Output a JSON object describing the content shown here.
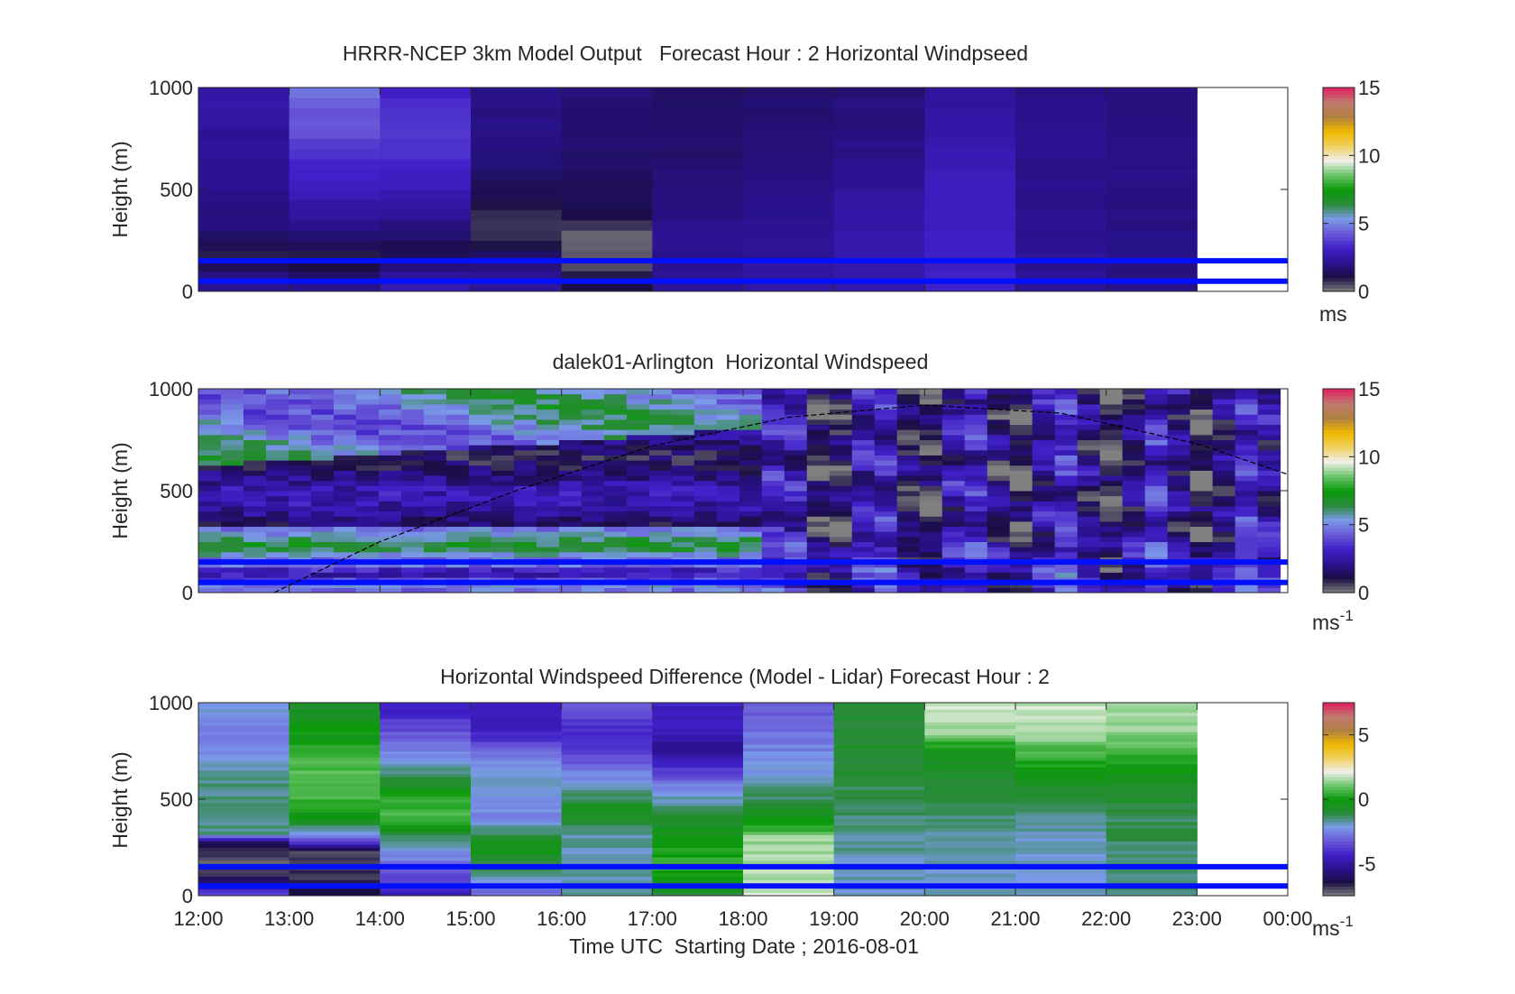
{
  "colors": {
    "speed_colormap": [
      "#808080",
      "#1a0e44",
      "#2a1290",
      "#4020c8",
      "#6a5ad8",
      "#7a9ae8",
      "#2a8a3a",
      "#0a9a0a",
      "#6ac46a",
      "#f0f0ea",
      "#f0d060",
      "#f0b800",
      "#b08040",
      "#c07a70",
      "#e02060"
    ],
    "diff_colormap": [
      "#808080",
      "#1a0e44",
      "#2a1290",
      "#4020c8",
      "#6a5ad8",
      "#7a9ae8",
      "#2a8a3a",
      "#0a9a0a",
      "#6ac46a",
      "#f0f0ea",
      "#f0d060",
      "#f0b800",
      "#b08040",
      "#c07a70",
      "#e02060"
    ],
    "reference_line": "#0010ff",
    "daylight_curve": "#000000"
  },
  "chart_data": [
    {
      "type": "heatmap",
      "title": "HRRR-NCEP 3km Model Output   Forecast Hour : 2 Horizontal Windpseed",
      "xlabel": "",
      "ylabel": "Height (m)",
      "ylim": [
        0,
        1000
      ],
      "yticks": [
        "0",
        "500",
        "1000"
      ],
      "xlim": [
        "12:00",
        "00:00"
      ],
      "colorbar": {
        "ticks": [
          "0",
          "5",
          "10",
          "15"
        ],
        "range": [
          0,
          15
        ],
        "unit": "ms"
      },
      "columns": [
        {
          "start": "12:00",
          "end": "13:00",
          "profile": [
            {
              "h": 0,
              "v": 2.3
            },
            {
              "h": 80,
              "v": 2.0
            },
            {
              "h": 150,
              "v": 0.8
            },
            {
              "h": 300,
              "v": 1.8
            },
            {
              "h": 600,
              "v": 2.2
            },
            {
              "h": 1000,
              "v": 2.6
            }
          ]
        },
        {
          "start": "13:00",
          "end": "14:00",
          "profile": [
            {
              "h": 0,
              "v": 2.5
            },
            {
              "h": 150,
              "v": 0.7
            },
            {
              "h": 300,
              "v": 2.0
            },
            {
              "h": 500,
              "v": 3.0
            },
            {
              "h": 650,
              "v": 3.4
            },
            {
              "h": 800,
              "v": 4.3
            },
            {
              "h": 900,
              "v": 4.2
            },
            {
              "h": 1000,
              "v": 5.0
            }
          ]
        },
        {
          "start": "14:00",
          "end": "15:00",
          "profile": [
            {
              "h": 0,
              "v": 2.8
            },
            {
              "h": 200,
              "v": 1.2
            },
            {
              "h": 400,
              "v": 2.4
            },
            {
              "h": 600,
              "v": 3.3
            },
            {
              "h": 800,
              "v": 3.6
            },
            {
              "h": 1000,
              "v": 3.2
            }
          ]
        },
        {
          "start": "15:00",
          "end": "16:00",
          "profile": [
            {
              "h": 0,
              "v": 2.6
            },
            {
              "h": 150,
              "v": 1.6
            },
            {
              "h": 300,
              "v": 0.6
            },
            {
              "h": 500,
              "v": 1.4
            },
            {
              "h": 700,
              "v": 1.9
            },
            {
              "h": 1000,
              "v": 2.0
            }
          ]
        },
        {
          "start": "16:00",
          "end": "17:00",
          "profile": [
            {
              "h": 0,
              "v": 1.2
            },
            {
              "h": 150,
              "v": 0.5
            },
            {
              "h": 280,
              "v": 0.2
            },
            {
              "h": 350,
              "v": 1.0
            },
            {
              "h": 600,
              "v": 1.6
            },
            {
              "h": 1000,
              "v": 1.8
            }
          ]
        },
        {
          "start": "17:00",
          "end": "18:00",
          "profile": [
            {
              "h": 0,
              "v": 2.2
            },
            {
              "h": 300,
              "v": 2.1
            },
            {
              "h": 600,
              "v": 1.7
            },
            {
              "h": 1000,
              "v": 1.5
            }
          ]
        },
        {
          "start": "18:00",
          "end": "19:00",
          "profile": [
            {
              "h": 0,
              "v": 2.4
            },
            {
              "h": 400,
              "v": 2.2
            },
            {
              "h": 800,
              "v": 1.8
            },
            {
              "h": 1000,
              "v": 1.7
            }
          ]
        },
        {
          "start": "19:00",
          "end": "20:00",
          "profile": [
            {
              "h": 0,
              "v": 2.8
            },
            {
              "h": 300,
              "v": 2.7
            },
            {
              "h": 500,
              "v": 2.3
            },
            {
              "h": 800,
              "v": 1.9
            },
            {
              "h": 1000,
              "v": 1.8
            }
          ]
        },
        {
          "start": "20:00",
          "end": "21:00",
          "profile": [
            {
              "h": 0,
              "v": 3.2
            },
            {
              "h": 300,
              "v": 3.1
            },
            {
              "h": 600,
              "v": 2.9
            },
            {
              "h": 800,
              "v": 2.5
            },
            {
              "h": 1000,
              "v": 2.4
            }
          ]
        },
        {
          "start": "21:00",
          "end": "22:00",
          "profile": [
            {
              "h": 0,
              "v": 2.2
            },
            {
              "h": 500,
              "v": 2.1
            },
            {
              "h": 1000,
              "v": 2.1
            }
          ]
        },
        {
          "start": "22:00",
          "end": "23:00",
          "profile": [
            {
              "h": 0,
              "v": 2.0
            },
            {
              "h": 500,
              "v": 2.0
            },
            {
              "h": 1000,
              "v": 2.0
            }
          ]
        }
      ],
      "reference_heights": [
        50,
        150
      ]
    },
    {
      "type": "heatmap",
      "title": "dalek01-Arlington  Horizontal Windspeed",
      "xlabel": "",
      "ylabel": "Height (m)",
      "ylim": [
        0,
        1000
      ],
      "yticks": [
        "0",
        "500",
        "1000"
      ],
      "xlim": [
        "12:00",
        "00:00"
      ],
      "data_end": "23:55",
      "colorbar": {
        "ticks": [
          "0",
          "5",
          "10",
          "15"
        ],
        "range": [
          0,
          15
        ],
        "unit": "ms",
        "unit_exponent": "-1"
      },
      "reference_heights": [
        50,
        150
      ],
      "curve": [
        {
          "t": "12:50",
          "h": 0
        },
        {
          "t": "14:00",
          "h": 250
        },
        {
          "t": "15:30",
          "h": 500
        },
        {
          "t": "17:00",
          "h": 720
        },
        {
          "t": "18:30",
          "h": 860
        },
        {
          "t": "20:00",
          "h": 920
        },
        {
          "t": "21:30",
          "h": 880
        },
        {
          "t": "23:00",
          "h": 730
        },
        {
          "t": "00:00",
          "h": 580
        }
      ]
    },
    {
      "type": "heatmap",
      "title": "Horizontal Windspeed Difference (Model - Lidar) Forecast Hour : 2",
      "xlabel": "Time UTC  Starting Date ; 2016-08-01",
      "ylabel": "Height (m)",
      "ylim": [
        0,
        1000
      ],
      "yticks": [
        "0",
        "500",
        "1000"
      ],
      "xticks": [
        "12:00",
        "13:00",
        "14:00",
        "15:00",
        "16:00",
        "17:00",
        "18:00",
        "19:00",
        "20:00",
        "21:00",
        "22:00",
        "23:00",
        "00:00"
      ],
      "xlim": [
        "12:00",
        "00:00"
      ],
      "colorbar": {
        "ticks": [
          "-5",
          "0",
          "5"
        ],
        "range": [
          -7.5,
          7.5
        ],
        "unit": "ms",
        "unit_exponent": "-1"
      },
      "columns": [
        {
          "start": "12:00",
          "end": "13:00",
          "profile": [
            {
              "h": 0,
              "v": -3.5
            },
            {
              "h": 100,
              "v": -6.5
            },
            {
              "h": 180,
              "v": -7.4
            },
            {
              "h": 280,
              "v": -6.0
            },
            {
              "h": 320,
              "v": -1.5
            },
            {
              "h": 600,
              "v": -1.5
            },
            {
              "h": 800,
              "v": -2.8
            },
            {
              "h": 1000,
              "v": -2.0
            }
          ]
        },
        {
          "start": "13:00",
          "end": "14:00",
          "profile": [
            {
              "h": 0,
              "v": -6.5
            },
            {
              "h": 220,
              "v": -7.0
            },
            {
              "h": 300,
              "v": -3.0
            },
            {
              "h": 380,
              "v": -0.6
            },
            {
              "h": 500,
              "v": 0.6
            },
            {
              "h": 700,
              "v": 0.8
            },
            {
              "h": 850,
              "v": -0.2
            },
            {
              "h": 1000,
              "v": -0.8
            }
          ]
        },
        {
          "start": "14:00",
          "end": "15:00",
          "profile": [
            {
              "h": 0,
              "v": -4.5
            },
            {
              "h": 150,
              "v": -3.0
            },
            {
              "h": 300,
              "v": -1.5
            },
            {
              "h": 400,
              "v": 0.8
            },
            {
              "h": 500,
              "v": 0.3
            },
            {
              "h": 600,
              "v": -1.0
            },
            {
              "h": 800,
              "v": -3.0
            },
            {
              "h": 950,
              "v": -4.2
            },
            {
              "h": 1000,
              "v": -4.0
            }
          ]
        },
        {
          "start": "15:00",
          "end": "16:00",
          "profile": [
            {
              "h": 0,
              "v": -3.2
            },
            {
              "h": 180,
              "v": -0.8
            },
            {
              "h": 250,
              "v": -0.2
            },
            {
              "h": 400,
              "v": -2.5
            },
            {
              "h": 600,
              "v": -1.8
            },
            {
              "h": 750,
              "v": -3.0
            },
            {
              "h": 850,
              "v": -4.4
            },
            {
              "h": 1000,
              "v": -4.4
            }
          ]
        },
        {
          "start": "16:00",
          "end": "17:00",
          "profile": [
            {
              "h": 0,
              "v": -1.8
            },
            {
              "h": 300,
              "v": -1.8
            },
            {
              "h": 450,
              "v": -0.3
            },
            {
              "h": 550,
              "v": -1.8
            },
            {
              "h": 700,
              "v": -3.2
            },
            {
              "h": 850,
              "v": -4.2
            },
            {
              "h": 1000,
              "v": -3.0
            }
          ]
        },
        {
          "start": "17:00",
          "end": "18:00",
          "profile": [
            {
              "h": 0,
              "v": -1.0
            },
            {
              "h": 150,
              "v": 0.5
            },
            {
              "h": 300,
              "v": -0.2
            },
            {
              "h": 450,
              "v": -1.2
            },
            {
              "h": 600,
              "v": -3.0
            },
            {
              "h": 750,
              "v": -5.5
            },
            {
              "h": 850,
              "v": -4.4
            },
            {
              "h": 1000,
              "v": -4.4
            }
          ]
        },
        {
          "start": "18:00",
          "end": "19:00",
          "profile": [
            {
              "h": 0,
              "v": 1.8
            },
            {
              "h": 300,
              "v": 1.5
            },
            {
              "h": 380,
              "v": -0.2
            },
            {
              "h": 600,
              "v": -2.0
            },
            {
              "h": 900,
              "v": -3.0
            },
            {
              "h": 1000,
              "v": -3.2
            }
          ]
        },
        {
          "start": "19:00",
          "end": "20:00",
          "profile": [
            {
              "h": 0,
              "v": -2.0
            },
            {
              "h": 400,
              "v": -1.5
            },
            {
              "h": 700,
              "v": -0.8
            },
            {
              "h": 1000,
              "v": -1.0
            }
          ]
        },
        {
          "start": "20:00",
          "end": "21:00",
          "profile": [
            {
              "h": 0,
              "v": -2.0
            },
            {
              "h": 300,
              "v": -1.8
            },
            {
              "h": 600,
              "v": -0.8
            },
            {
              "h": 750,
              "v": -0.3
            },
            {
              "h": 850,
              "v": 1.5
            },
            {
              "h": 1000,
              "v": 1.9
            }
          ]
        },
        {
          "start": "21:00",
          "end": "22:00",
          "profile": [
            {
              "h": 0,
              "v": -2.0
            },
            {
              "h": 300,
              "v": -2.0
            },
            {
              "h": 550,
              "v": -0.8
            },
            {
              "h": 700,
              "v": 0.3
            },
            {
              "h": 850,
              "v": 1.6
            },
            {
              "h": 1000,
              "v": 1.8
            }
          ]
        },
        {
          "start": "22:00",
          "end": "23:00",
          "profile": [
            {
              "h": 0,
              "v": -1.5
            },
            {
              "h": 400,
              "v": -1.2
            },
            {
              "h": 650,
              "v": -0.2
            },
            {
              "h": 800,
              "v": 1.2
            },
            {
              "h": 1000,
              "v": 1.6
            }
          ]
        }
      ],
      "reference_heights": [
        50,
        150
      ]
    }
  ]
}
